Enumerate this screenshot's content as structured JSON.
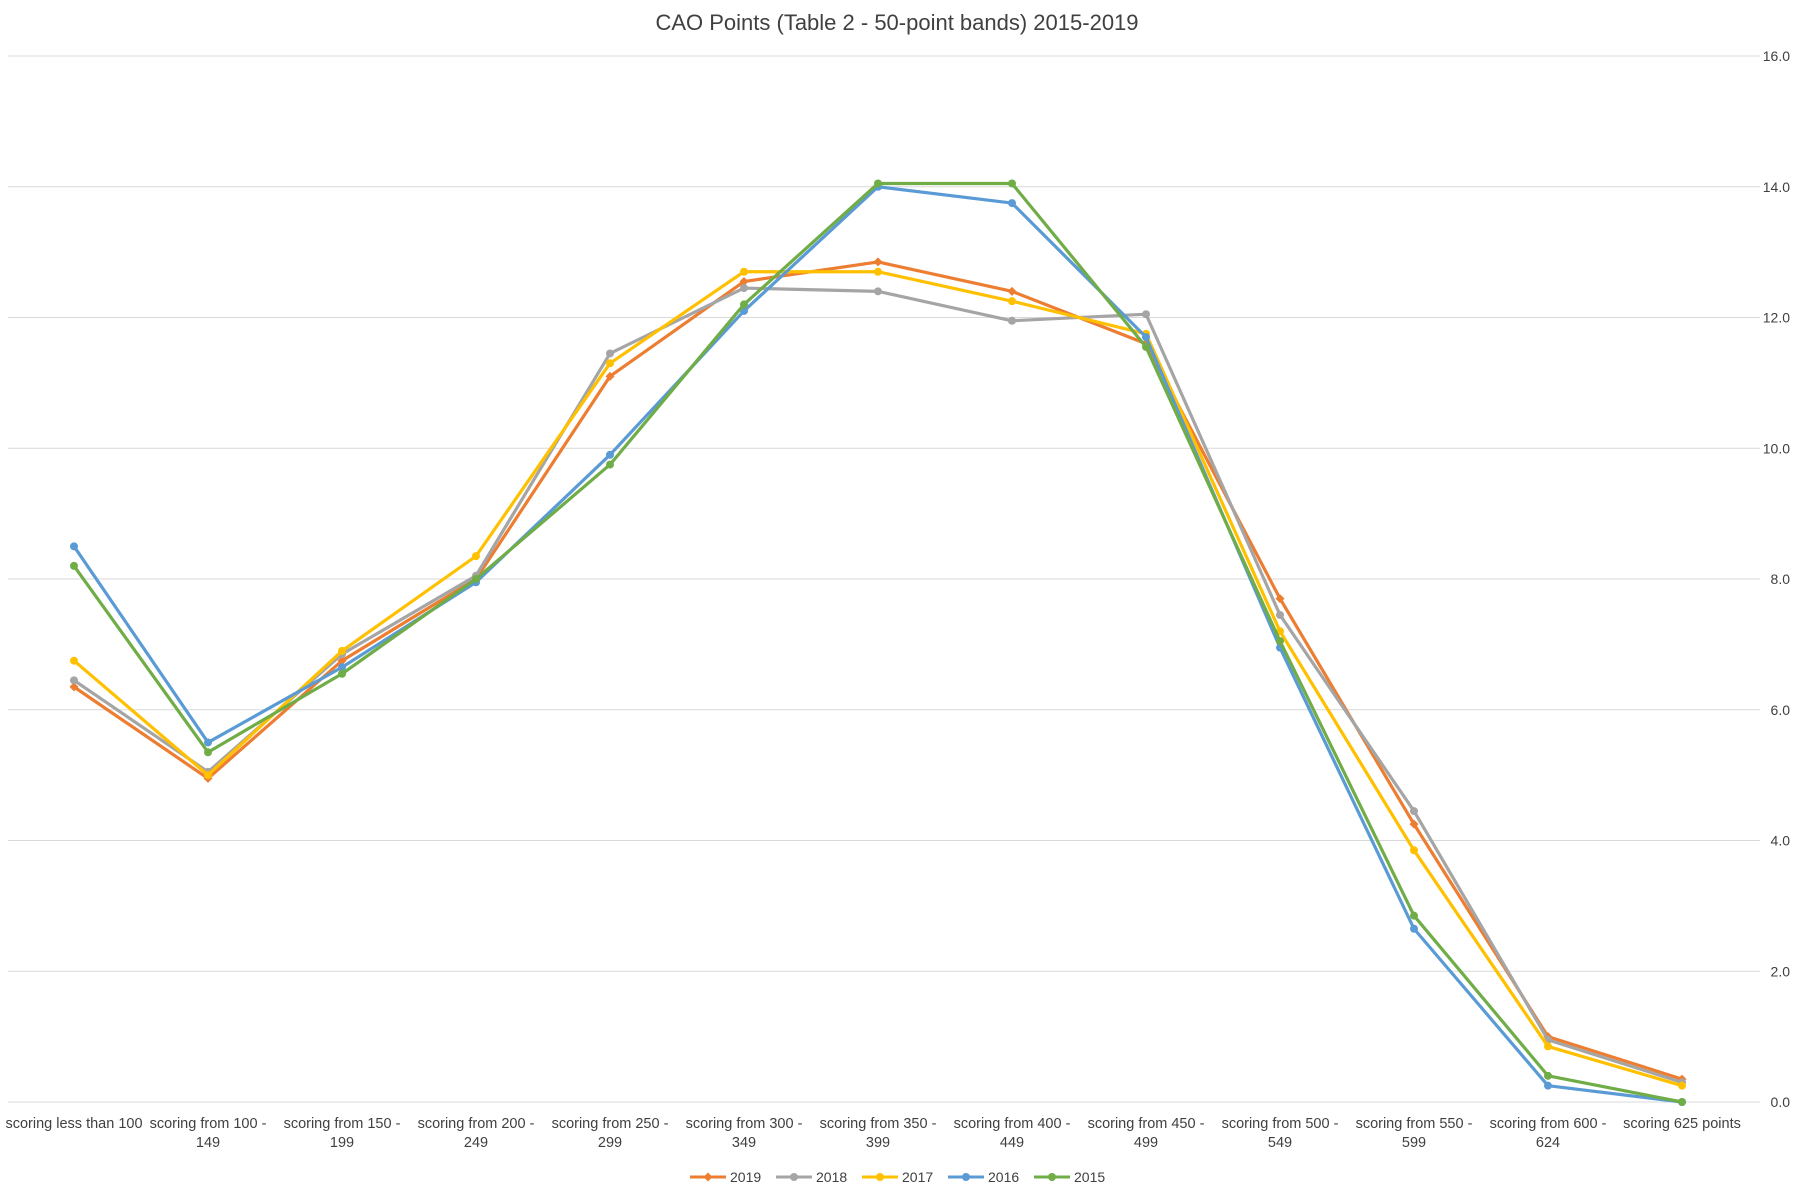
{
  "chart_data": {
    "type": "line",
    "title": "CAO Points (Table 2 - 50-point bands) 2015-2019",
    "xlabel": "",
    "ylabel": "",
    "ylim": [
      0,
      16
    ],
    "y_ticks": [
      "0.0",
      "2.0",
      "4.0",
      "6.0",
      "8.0",
      "10.0",
      "12.0",
      "14.0",
      "16.0"
    ],
    "y_tick_values": [
      0,
      2,
      4,
      6,
      8,
      10,
      12,
      14,
      16
    ],
    "y_axis_side": "right",
    "grid": true,
    "legend_position": "bottom",
    "categories": [
      [
        "scoring less than 100"
      ],
      [
        "scoring from 100 -",
        "149"
      ],
      [
        "scoring from 150 -",
        "199"
      ],
      [
        "scoring from 200 -",
        "249"
      ],
      [
        "scoring from 250 -",
        "299"
      ],
      [
        "scoring from 300 -",
        "349"
      ],
      [
        "scoring from 350 -",
        "399"
      ],
      [
        "scoring from 400 -",
        "449"
      ],
      [
        "scoring from 450 -",
        "499"
      ],
      [
        "scoring from 500 -",
        "549"
      ],
      [
        "scoring from 550 -",
        "599"
      ],
      [
        "scoring from 600 -",
        "624"
      ],
      [
        "scoring 625 points"
      ]
    ],
    "series": [
      {
        "name": "2019",
        "color": "#ED7D31",
        "marker": "diamond",
        "values": [
          6.35,
          4.95,
          6.75,
          8.0,
          11.1,
          12.55,
          12.85,
          12.4,
          11.6,
          7.7,
          4.25,
          1.0,
          0.35
        ]
      },
      {
        "name": "2018",
        "color": "#A5A5A5",
        "marker": "circle",
        "values": [
          6.45,
          5.05,
          6.85,
          8.05,
          11.45,
          12.45,
          12.4,
          11.95,
          12.05,
          7.45,
          4.45,
          0.95,
          0.3
        ]
      },
      {
        "name": "2017",
        "color": "#FFC000",
        "marker": "circle",
        "values": [
          6.75,
          5.0,
          6.9,
          8.35,
          11.3,
          12.7,
          12.7,
          12.25,
          11.75,
          7.2,
          3.85,
          0.85,
          0.25
        ]
      },
      {
        "name": "2016",
        "color": "#5B9BD5",
        "marker": "circle",
        "values": [
          8.5,
          5.5,
          6.65,
          7.95,
          9.9,
          12.1,
          14.0,
          13.75,
          11.7,
          6.95,
          2.65,
          0.25,
          0.0
        ]
      },
      {
        "name": "2015",
        "color": "#70AD47",
        "marker": "circle",
        "values": [
          8.2,
          5.35,
          6.55,
          8.0,
          9.75,
          12.2,
          14.05,
          14.05,
          11.55,
          7.05,
          2.85,
          0.4,
          0.0
        ]
      }
    ]
  }
}
